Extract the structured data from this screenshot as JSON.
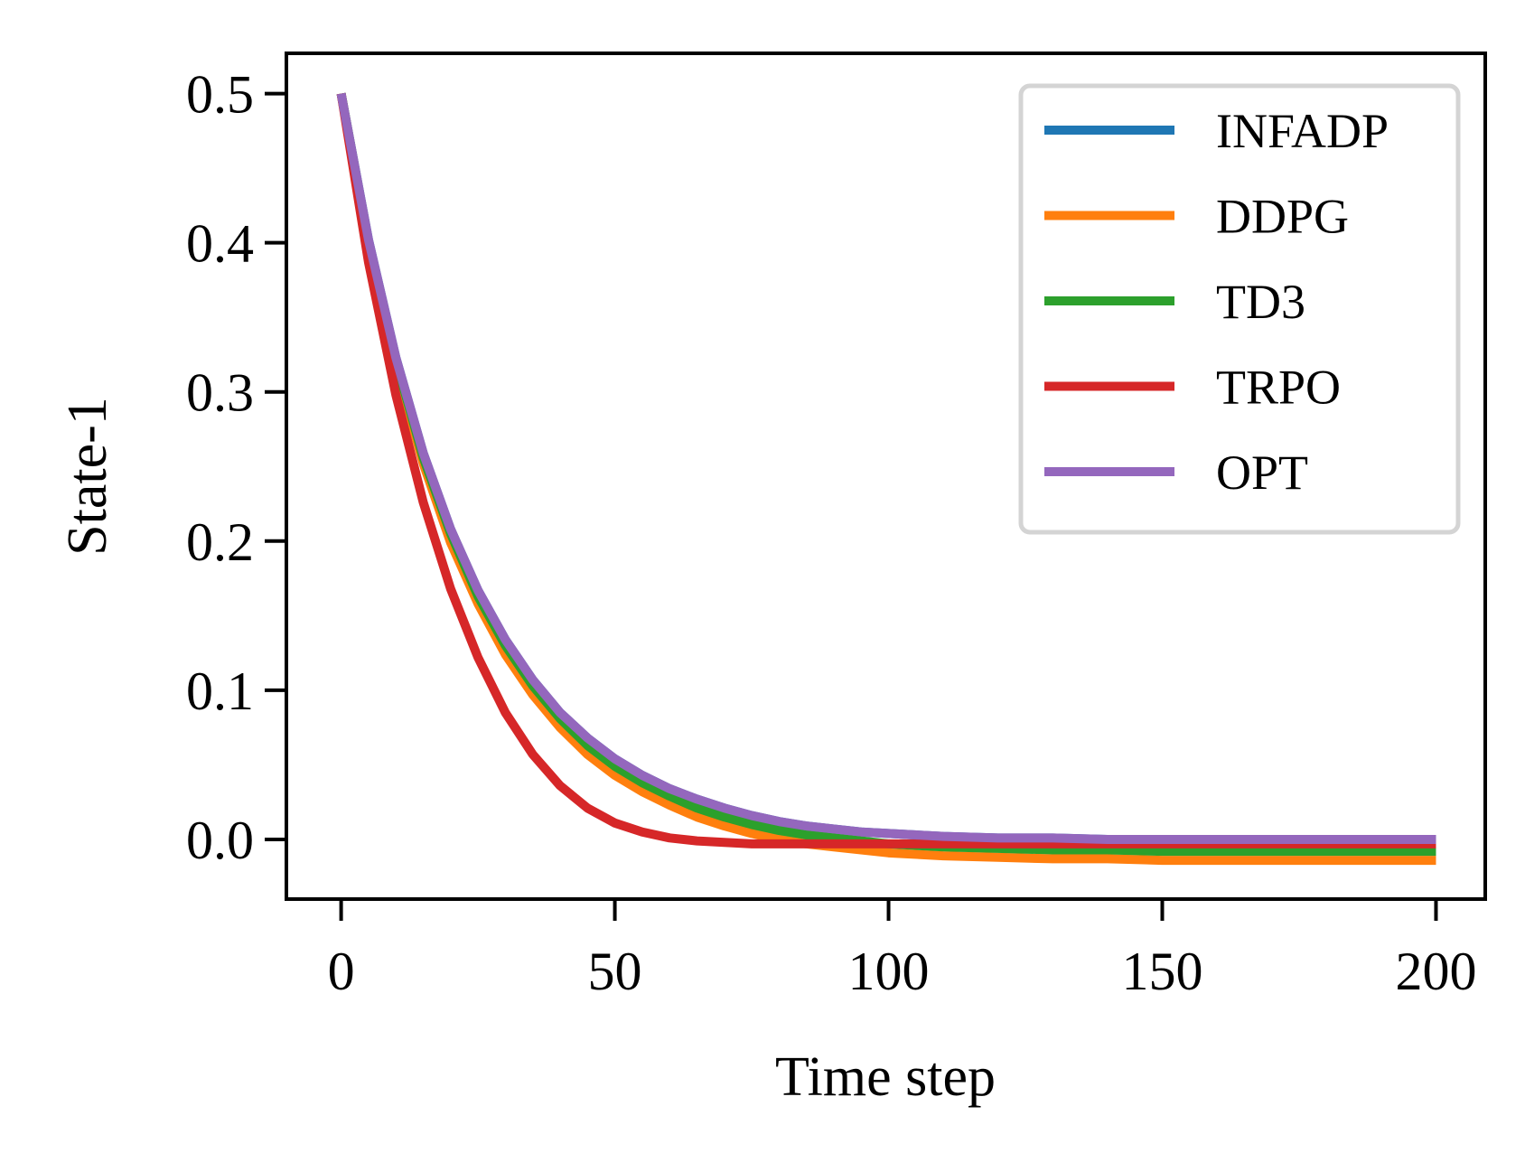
{
  "chart_data": {
    "type": "line",
    "xlabel": "Time step",
    "ylabel": "State-1",
    "xlim": [
      -10,
      209
    ],
    "ylim": [
      -0.04,
      0.527
    ],
    "xticks": [
      0,
      50,
      100,
      150,
      200
    ],
    "xtick_labels": [
      "0",
      "50",
      "100",
      "150",
      "200"
    ],
    "yticks": [
      0.0,
      0.1,
      0.2,
      0.3,
      0.4,
      0.5
    ],
    "ytick_labels": [
      "0.0",
      "0.1",
      "0.2",
      "0.3",
      "0.4",
      "0.5"
    ],
    "grid": false,
    "legend_position": "top-right",
    "x": [
      0,
      5,
      10,
      15,
      20,
      25,
      30,
      35,
      40,
      45,
      50,
      55,
      60,
      65,
      70,
      75,
      80,
      85,
      90,
      95,
      100,
      110,
      120,
      130,
      140,
      150,
      160,
      170,
      180,
      190,
      200
    ],
    "series": [
      {
        "name": "INFADP",
        "color": "#1f77b4",
        "values": [
          0.5,
          0.402,
          0.323,
          0.259,
          0.208,
          0.167,
          0.134,
          0.107,
          0.085,
          0.068,
          0.054,
          0.043,
          0.034,
          0.027,
          0.021,
          0.016,
          0.012,
          0.009,
          0.007,
          0.005,
          0.004,
          0.002,
          0.001,
          0.001,
          0.0,
          0.0,
          0.0,
          0.0,
          0.0,
          0.0,
          0.0
        ]
      },
      {
        "name": "DDPG",
        "color": "#ff7f0e",
        "values": [
          0.5,
          0.4,
          0.318,
          0.252,
          0.199,
          0.158,
          0.124,
          0.097,
          0.075,
          0.057,
          0.043,
          0.032,
          0.023,
          0.015,
          0.009,
          0.004,
          0.0,
          -0.003,
          -0.005,
          -0.007,
          -0.009,
          -0.011,
          -0.012,
          -0.013,
          -0.013,
          -0.014,
          -0.014,
          -0.014,
          -0.014,
          -0.014,
          -0.014
        ]
      },
      {
        "name": "TD3",
        "color": "#2ca02c",
        "values": [
          0.5,
          0.401,
          0.321,
          0.256,
          0.205,
          0.163,
          0.13,
          0.103,
          0.081,
          0.063,
          0.049,
          0.038,
          0.029,
          0.021,
          0.015,
          0.01,
          0.006,
          0.003,
          0.001,
          -0.001,
          -0.003,
          -0.005,
          -0.006,
          -0.007,
          -0.007,
          -0.008,
          -0.008,
          -0.008,
          -0.008,
          -0.008,
          -0.008
        ]
      },
      {
        "name": "TRPO",
        "color": "#d62728",
        "values": [
          0.5,
          0.387,
          0.298,
          0.226,
          0.168,
          0.122,
          0.085,
          0.057,
          0.036,
          0.021,
          0.011,
          0.005,
          0.001,
          -0.001,
          -0.002,
          -0.003,
          -0.003,
          -0.003,
          -0.003,
          -0.003,
          -0.003,
          -0.003,
          -0.003,
          -0.003,
          -0.003,
          -0.003,
          -0.003,
          -0.003,
          -0.003,
          -0.003,
          -0.003
        ]
      },
      {
        "name": "OPT",
        "color": "#9467bd",
        "values": [
          0.5,
          0.402,
          0.323,
          0.259,
          0.208,
          0.167,
          0.134,
          0.107,
          0.085,
          0.068,
          0.054,
          0.043,
          0.034,
          0.027,
          0.021,
          0.016,
          0.012,
          0.009,
          0.007,
          0.005,
          0.004,
          0.002,
          0.001,
          0.001,
          0.0,
          0.0,
          0.0,
          0.0,
          0.0,
          0.0,
          0.0
        ]
      }
    ]
  }
}
